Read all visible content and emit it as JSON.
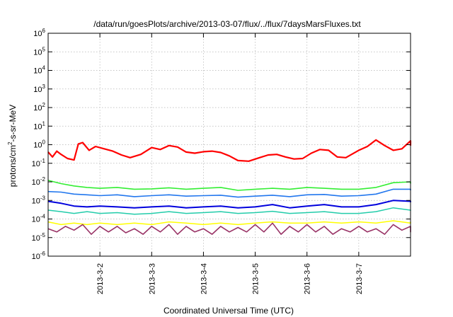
{
  "chart_data": {
    "type": "line",
    "title": "/data/run/goesPlots/archive/2013-03-07/flux/../flux/7daysMarsFluxes.txt",
    "xlabel": "Coordinated Universal Time (UTC)",
    "ylabel": {
      "pre": "protons/cm",
      "sup": "2",
      "post": "-s-sr-MeV"
    },
    "yscale": "log",
    "ylim": [
      1e-06,
      1000000.0
    ],
    "xlim": [
      "2013-03-01T00:00",
      "2013-03-08T00:00"
    ],
    "grid": true,
    "yticks": [
      {
        "value": 1e-06,
        "base": "10",
        "exp": "-6"
      },
      {
        "value": 1e-05,
        "base": "10",
        "exp": "-5"
      },
      {
        "value": 0.0001,
        "base": "10",
        "exp": "-4"
      },
      {
        "value": 0.001,
        "base": "10",
        "exp": "-3"
      },
      {
        "value": 0.01,
        "base": "10",
        "exp": "-2"
      },
      {
        "value": 0.1,
        "base": "10",
        "exp": "-1"
      },
      {
        "value": 1,
        "base": "10",
        "exp": "0"
      },
      {
        "value": 10,
        "base": "10",
        "exp": "1"
      },
      {
        "value": 100,
        "base": "10",
        "exp": "2"
      },
      {
        "value": 1000,
        "base": "10",
        "exp": "3"
      },
      {
        "value": 10000,
        "base": "10",
        "exp": "4"
      },
      {
        "value": 100000,
        "base": "10",
        "exp": "5"
      },
      {
        "value": 1000000,
        "base": "10",
        "exp": "6"
      }
    ],
    "xticks": [
      {
        "value": "2013-03-02T00:00",
        "label": "2013-3-2"
      },
      {
        "value": "2013-03-03T00:00",
        "label": "2013-3-3"
      },
      {
        "value": "2013-03-04T00:00",
        "label": "2013-3-4"
      },
      {
        "value": "2013-03-05T00:00",
        "label": "2013-3-5"
      },
      {
        "value": "2013-03-06T00:00",
        "label": "2013-3-6"
      },
      {
        "value": "2013-03-07T00:00",
        "label": "2013-3-7"
      }
    ],
    "series": [
      {
        "color": "#ff0000",
        "width": 2.2,
        "points": [
          [
            "2013-03-01T00:00",
            0.4
          ],
          [
            "2013-03-01T02:00",
            0.22
          ],
          [
            "2013-03-01T04:00",
            0.45
          ],
          [
            "2013-03-01T06:00",
            0.3
          ],
          [
            "2013-03-01T09:00",
            0.18
          ],
          [
            "2013-03-01T12:00",
            0.15
          ],
          [
            "2013-03-01T14:00",
            1.1
          ],
          [
            "2013-03-01T16:00",
            1.3
          ],
          [
            "2013-03-01T19:00",
            0.5
          ],
          [
            "2013-03-01T22:00",
            0.8
          ],
          [
            "2013-03-02T02:00",
            0.6
          ],
          [
            "2013-03-02T06:00",
            0.45
          ],
          [
            "2013-03-02T10:00",
            0.28
          ],
          [
            "2013-03-02T14:00",
            0.2
          ],
          [
            "2013-03-02T19:00",
            0.3
          ],
          [
            "2013-03-03T00:00",
            0.7
          ],
          [
            "2013-03-03T04:00",
            0.55
          ],
          [
            "2013-03-03T08:00",
            0.9
          ],
          [
            "2013-03-03T12:00",
            0.75
          ],
          [
            "2013-03-03T16:00",
            0.4
          ],
          [
            "2013-03-03T20:00",
            0.35
          ],
          [
            "2013-03-04T00:00",
            0.42
          ],
          [
            "2013-03-04T04:00",
            0.45
          ],
          [
            "2013-03-04T08:00",
            0.38
          ],
          [
            "2013-03-04T12:00",
            0.25
          ],
          [
            "2013-03-04T16:00",
            0.14
          ],
          [
            "2013-03-04T21:00",
            0.13
          ],
          [
            "2013-03-05T02:00",
            0.2
          ],
          [
            "2013-03-05T06:00",
            0.28
          ],
          [
            "2013-03-05T10:00",
            0.3
          ],
          [
            "2013-03-05T14:00",
            0.22
          ],
          [
            "2013-03-05T18:00",
            0.17
          ],
          [
            "2013-03-05T22:00",
            0.18
          ],
          [
            "2013-03-06T02:00",
            0.35
          ],
          [
            "2013-03-06T06:00",
            0.55
          ],
          [
            "2013-03-06T10:00",
            0.5
          ],
          [
            "2013-03-06T14:00",
            0.22
          ],
          [
            "2013-03-06T18:00",
            0.2
          ],
          [
            "2013-03-07T00:00",
            0.5
          ],
          [
            "2013-03-07T04:00",
            0.8
          ],
          [
            "2013-03-07T08:00",
            1.8
          ],
          [
            "2013-03-07T12:00",
            0.9
          ],
          [
            "2013-03-07T16:00",
            0.5
          ],
          [
            "2013-03-07T20:00",
            0.6
          ],
          [
            "2013-03-08T00:00",
            1.6
          ],
          [
            "2013-03-08T03:00",
            1.5
          ],
          [
            "2013-03-08T06:00",
            0.9
          ]
        ]
      },
      {
        "color": "#33ee33",
        "width": 1.6,
        "points": [
          [
            "2013-03-01T00:00",
            0.012
          ],
          [
            "2013-03-01T06:00",
            0.008
          ],
          [
            "2013-03-01T12:00",
            0.006
          ],
          [
            "2013-03-01T18:00",
            0.005
          ],
          [
            "2013-03-02T00:00",
            0.0045
          ],
          [
            "2013-03-02T08:00",
            0.005
          ],
          [
            "2013-03-02T16:00",
            0.004
          ],
          [
            "2013-03-03T00:00",
            0.0042
          ],
          [
            "2013-03-03T08:00",
            0.0048
          ],
          [
            "2013-03-03T16:00",
            0.004
          ],
          [
            "2013-03-04T00:00",
            0.0045
          ],
          [
            "2013-03-04T08:00",
            0.005
          ],
          [
            "2013-03-04T16:00",
            0.0035
          ],
          [
            "2013-03-05T00:00",
            0.004
          ],
          [
            "2013-03-05T08:00",
            0.0045
          ],
          [
            "2013-03-05T16:00",
            0.004
          ],
          [
            "2013-03-06T00:00",
            0.005
          ],
          [
            "2013-03-06T08:00",
            0.0045
          ],
          [
            "2013-03-06T16:00",
            0.004
          ],
          [
            "2013-03-07T00:00",
            0.004
          ],
          [
            "2013-03-07T08:00",
            0.005
          ],
          [
            "2013-03-07T16:00",
            0.009
          ],
          [
            "2013-03-08T00:00",
            0.01
          ],
          [
            "2013-03-08T06:00",
            0.008
          ]
        ]
      },
      {
        "color": "#2277ee",
        "width": 1.6,
        "points": [
          [
            "2013-03-01T00:00",
            0.003
          ],
          [
            "2013-03-01T06:00",
            0.0028
          ],
          [
            "2013-03-01T12:00",
            0.0022
          ],
          [
            "2013-03-01T18:00",
            0.002
          ],
          [
            "2013-03-02T00:00",
            0.0018
          ],
          [
            "2013-03-02T08:00",
            0.002
          ],
          [
            "2013-03-02T16:00",
            0.0016
          ],
          [
            "2013-03-03T00:00",
            0.0018
          ],
          [
            "2013-03-03T08:00",
            0.002
          ],
          [
            "2013-03-03T16:00",
            0.0017
          ],
          [
            "2013-03-04T00:00",
            0.0018
          ],
          [
            "2013-03-04T08:00",
            0.0019
          ],
          [
            "2013-03-04T16:00",
            0.0015
          ],
          [
            "2013-03-05T00:00",
            0.0017
          ],
          [
            "2013-03-05T08:00",
            0.0019
          ],
          [
            "2013-03-05T16:00",
            0.0016
          ],
          [
            "2013-03-06T00:00",
            0.002
          ],
          [
            "2013-03-06T08:00",
            0.0021
          ],
          [
            "2013-03-06T16:00",
            0.0017
          ],
          [
            "2013-03-07T00:00",
            0.0018
          ],
          [
            "2013-03-07T08:00",
            0.0022
          ],
          [
            "2013-03-07T16:00",
            0.004
          ],
          [
            "2013-03-08T00:00",
            0.004
          ],
          [
            "2013-03-08T06:00",
            0.0035
          ]
        ]
      },
      {
        "color": "#0000dd",
        "width": 2.0,
        "points": [
          [
            "2013-03-01T00:00",
            0.0009
          ],
          [
            "2013-03-01T06:00",
            0.0007
          ],
          [
            "2013-03-01T12:00",
            0.0005
          ],
          [
            "2013-03-01T18:00",
            0.00045
          ],
          [
            "2013-03-02T00:00",
            0.0005
          ],
          [
            "2013-03-02T08:00",
            0.00045
          ],
          [
            "2013-03-02T16:00",
            0.0004
          ],
          [
            "2013-03-03T00:00",
            0.00045
          ],
          [
            "2013-03-03T08:00",
            0.0005
          ],
          [
            "2013-03-03T16:00",
            0.0004
          ],
          [
            "2013-03-04T00:00",
            0.00045
          ],
          [
            "2013-03-04T08:00",
            0.0005
          ],
          [
            "2013-03-04T16:00",
            0.0004
          ],
          [
            "2013-03-05T00:00",
            0.00045
          ],
          [
            "2013-03-05T08:00",
            0.0006
          ],
          [
            "2013-03-05T16:00",
            0.0004
          ],
          [
            "2013-03-06T00:00",
            0.0005
          ],
          [
            "2013-03-06T08:00",
            0.0006
          ],
          [
            "2013-03-06T16:00",
            0.00045
          ],
          [
            "2013-03-07T00:00",
            0.00045
          ],
          [
            "2013-03-07T08:00",
            0.0006
          ],
          [
            "2013-03-07T16:00",
            0.001
          ],
          [
            "2013-03-08T00:00",
            0.0009
          ],
          [
            "2013-03-08T06:00",
            0.0008
          ]
        ]
      },
      {
        "color": "#22ccaa",
        "width": 1.5,
        "points": [
          [
            "2013-03-01T00:00",
            0.0003
          ],
          [
            "2013-03-01T06:00",
            0.00025
          ],
          [
            "2013-03-01T12:00",
            0.0002
          ],
          [
            "2013-03-01T18:00",
            0.00025
          ],
          [
            "2013-03-02T00:00",
            0.0002
          ],
          [
            "2013-03-02T08:00",
            0.00022
          ],
          [
            "2013-03-02T16:00",
            0.00018
          ],
          [
            "2013-03-03T00:00",
            0.0002
          ],
          [
            "2013-03-03T08:00",
            0.00025
          ],
          [
            "2013-03-03T16:00",
            0.0002
          ],
          [
            "2013-03-04T00:00",
            0.00022
          ],
          [
            "2013-03-04T08:00",
            0.00025
          ],
          [
            "2013-03-04T16:00",
            0.0002
          ],
          [
            "2013-03-05T00:00",
            0.00022
          ],
          [
            "2013-03-05T08:00",
            0.00026
          ],
          [
            "2013-03-05T16:00",
            0.0002
          ],
          [
            "2013-03-06T00:00",
            0.00022
          ],
          [
            "2013-03-06T08:00",
            0.00025
          ],
          [
            "2013-03-06T16:00",
            0.0002
          ],
          [
            "2013-03-07T00:00",
            0.0002
          ],
          [
            "2013-03-07T08:00",
            0.00025
          ],
          [
            "2013-03-07T16:00",
            0.0004
          ],
          [
            "2013-03-08T00:00",
            0.0003
          ],
          [
            "2013-03-08T06:00",
            0.00028
          ]
        ]
      },
      {
        "color": "#ffff00",
        "width": 1.5,
        "points": [
          [
            "2013-03-01T00:00",
            7e-05
          ],
          [
            "2013-03-01T06:00",
            5e-05
          ],
          [
            "2013-03-01T12:00",
            6e-05
          ],
          [
            "2013-03-01T18:00",
            5e-05
          ],
          [
            "2013-03-02T00:00",
            6e-05
          ],
          [
            "2013-03-02T08:00",
            5e-05
          ],
          [
            "2013-03-02T16:00",
            6e-05
          ],
          [
            "2013-03-03T00:00",
            5e-05
          ],
          [
            "2013-03-03T08:00",
            7e-05
          ],
          [
            "2013-03-03T16:00",
            6e-05
          ],
          [
            "2013-03-04T00:00",
            5e-05
          ],
          [
            "2013-03-04T08:00",
            6e-05
          ],
          [
            "2013-03-04T16:00",
            5e-05
          ],
          [
            "2013-03-05T00:00",
            6e-05
          ],
          [
            "2013-03-05T08:00",
            7e-05
          ],
          [
            "2013-03-05T16:00",
            6e-05
          ],
          [
            "2013-03-06T00:00",
            6e-05
          ],
          [
            "2013-03-06T08:00",
            7e-05
          ],
          [
            "2013-03-06T16:00",
            6e-05
          ],
          [
            "2013-03-07T00:00",
            7e-05
          ],
          [
            "2013-03-07T08:00",
            6e-05
          ],
          [
            "2013-03-07T16:00",
            8e-05
          ],
          [
            "2013-03-08T00:00",
            6e-05
          ],
          [
            "2013-03-08T06:00",
            7e-05
          ]
        ]
      },
      {
        "color": "#993366",
        "width": 1.6,
        "points": [
          [
            "2013-03-01T00:00",
            3e-05
          ],
          [
            "2013-03-01T04:00",
            2e-05
          ],
          [
            "2013-03-01T08:00",
            4e-05
          ],
          [
            "2013-03-01T12:00",
            2.5e-05
          ],
          [
            "2013-03-01T16:00",
            5e-05
          ],
          [
            "2013-03-01T20:00",
            1.5e-05
          ],
          [
            "2013-03-02T00:00",
            4e-05
          ],
          [
            "2013-03-02T04:00",
            2e-05
          ],
          [
            "2013-03-02T08:00",
            4e-05
          ],
          [
            "2013-03-02T12:00",
            1.8e-05
          ],
          [
            "2013-03-02T16:00",
            3e-05
          ],
          [
            "2013-03-02T20:00",
            1.5e-05
          ],
          [
            "2013-03-03T00:00",
            4e-05
          ],
          [
            "2013-03-03T04:00",
            2e-05
          ],
          [
            "2013-03-03T08:00",
            5e-05
          ],
          [
            "2013-03-03T12:00",
            1.5e-05
          ],
          [
            "2013-03-03T16:00",
            4e-05
          ],
          [
            "2013-03-03T20:00",
            2e-05
          ],
          [
            "2013-03-04T00:00",
            3e-05
          ],
          [
            "2013-03-04T04:00",
            1.5e-05
          ],
          [
            "2013-03-04T08:00",
            4e-05
          ],
          [
            "2013-03-04T12:00",
            2e-05
          ],
          [
            "2013-03-04T16:00",
            3.5e-05
          ],
          [
            "2013-03-04T20:00",
            2e-05
          ],
          [
            "2013-03-05T00:00",
            5e-05
          ],
          [
            "2013-03-05T04:00",
            2e-05
          ],
          [
            "2013-03-05T08:00",
            6e-05
          ],
          [
            "2013-03-05T12:00",
            1.5e-05
          ],
          [
            "2013-03-05T16:00",
            4e-05
          ],
          [
            "2013-03-05T20:00",
            2e-05
          ],
          [
            "2013-03-06T00:00",
            5e-05
          ],
          [
            "2013-03-06T04:00",
            2e-05
          ],
          [
            "2013-03-06T08:00",
            4e-05
          ],
          [
            "2013-03-06T12:00",
            1.5e-05
          ],
          [
            "2013-03-06T16:00",
            3e-05
          ],
          [
            "2013-03-06T20:00",
            2e-05
          ],
          [
            "2013-03-07T00:00",
            4e-05
          ],
          [
            "2013-03-07T04:00",
            2e-05
          ],
          [
            "2013-03-07T08:00",
            3e-05
          ],
          [
            "2013-03-07T12:00",
            1.5e-05
          ],
          [
            "2013-03-07T16:00",
            5e-05
          ],
          [
            "2013-03-07T20:00",
            2.5e-05
          ],
          [
            "2013-03-08T00:00",
            4e-05
          ],
          [
            "2013-03-08T04:00",
            2e-05
          ],
          [
            "2013-03-08T08:00",
            2.5e-05
          ]
        ]
      }
    ]
  }
}
